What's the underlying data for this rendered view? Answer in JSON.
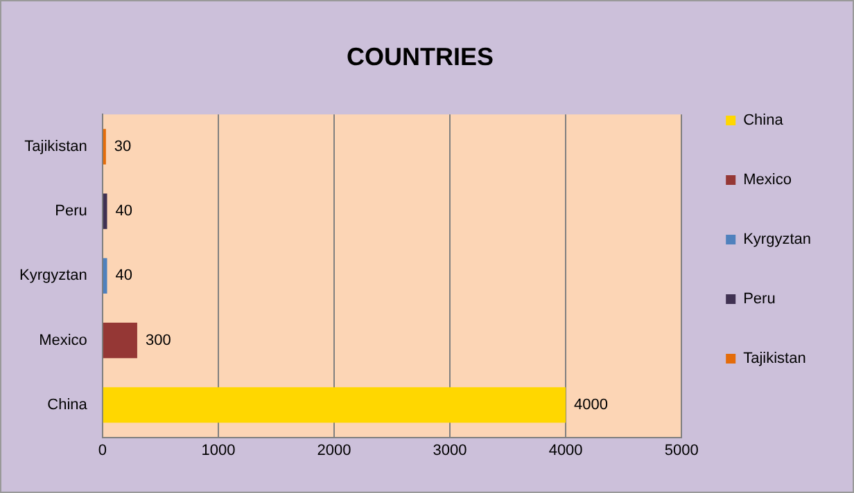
{
  "chart_data": {
    "type": "bar",
    "orientation": "horizontal",
    "stacked": true,
    "title": "COUNTRIES",
    "categories": [
      "Tajikistan",
      "Peru",
      "Kyrgyztan",
      "Mexico",
      "China"
    ],
    "series": [
      {
        "name": "China",
        "color": "#ffd700",
        "values": [
          null,
          null,
          null,
          null,
          4000
        ]
      },
      {
        "name": "Mexico",
        "color": "#953735",
        "values": [
          null,
          null,
          null,
          300,
          null
        ]
      },
      {
        "name": "Kyrgyztan",
        "color": "#4f81bd",
        "values": [
          null,
          null,
          40,
          null,
          null
        ]
      },
      {
        "name": "Peru",
        "color": "#403152",
        "values": [
          null,
          40,
          null,
          null,
          null
        ]
      },
      {
        "name": "Tajikistan",
        "color": "#e46c0a",
        "values": [
          30,
          null,
          null,
          null,
          null
        ]
      }
    ],
    "xlim": [
      0,
      5000
    ],
    "xticks": [
      0,
      1000,
      2000,
      3000,
      4000,
      5000
    ],
    "grid": "x",
    "legend": "right",
    "data_labels": true
  }
}
